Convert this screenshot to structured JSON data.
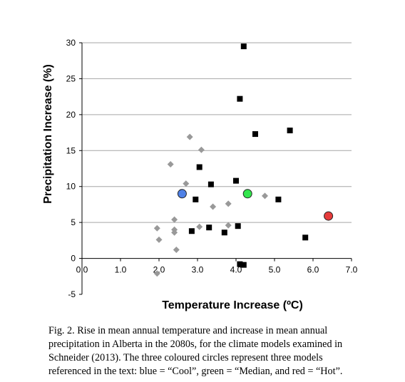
{
  "chart_data": {
    "type": "scatter",
    "xlabel": "Temperature Increase (ºC)",
    "ylabel": "Precipitation Increase (%)",
    "xlim": [
      0,
      7
    ],
    "ylim": [
      -5,
      30
    ],
    "x_ticks": [
      "0.0",
      "1.0",
      "2.0",
      "3.0",
      "4.0",
      "5.0",
      "6.0",
      "7.0"
    ],
    "y_ticks": [
      "-5",
      "0",
      "5",
      "10",
      "15",
      "20",
      "25",
      "30"
    ],
    "gridlines": "horizontal",
    "series": [
      {
        "marker": "square",
        "color": "#000000",
        "points": [
          [
            4.2,
            29.5
          ],
          [
            4.1,
            22.2
          ],
          [
            4.5,
            17.3
          ],
          [
            5.4,
            17.8
          ],
          [
            3.05,
            12.7
          ],
          [
            4.0,
            10.8
          ],
          [
            3.35,
            10.3
          ],
          [
            2.95,
            8.2
          ],
          [
            5.1,
            8.2
          ],
          [
            4.05,
            4.5
          ],
          [
            3.3,
            4.3
          ],
          [
            3.7,
            3.6
          ],
          [
            2.85,
            3.8
          ],
          [
            5.8,
            2.9
          ],
          [
            4.1,
            -0.8
          ],
          [
            4.2,
            -0.9
          ]
        ]
      },
      {
        "marker": "diamond",
        "color": "#999999",
        "points": [
          [
            2.8,
            16.9
          ],
          [
            3.1,
            15.1
          ],
          [
            2.3,
            13.1
          ],
          [
            2.7,
            10.4
          ],
          [
            4.75,
            8.7
          ],
          [
            3.8,
            7.6
          ],
          [
            3.4,
            7.2
          ],
          [
            2.4,
            5.4
          ],
          [
            3.05,
            4.4
          ],
          [
            3.8,
            4.6
          ],
          [
            1.95,
            4.2
          ],
          [
            2.4,
            4.0
          ],
          [
            2.4,
            3.6
          ],
          [
            2.0,
            2.6
          ],
          [
            2.45,
            1.2
          ],
          [
            1.95,
            -2.1
          ]
        ]
      },
      {
        "marker": "circle",
        "points": [
          {
            "x": 2.6,
            "y": 9.0,
            "color": "#4f81e6"
          },
          {
            "x": 4.3,
            "y": 9.0,
            "color": "#33e64d"
          },
          {
            "x": 6.4,
            "y": 5.9,
            "color": "#e63b3b"
          }
        ]
      }
    ]
  },
  "caption": {
    "lines": [
      "Fig. 2.  Rise in mean annual temperature and increase in mean annual",
      "precipitation in Alberta in the 2080s, for the climate models examined in",
      "Schneider (2013).  The three coloured circles represent three models",
      "referenced in the text: blue = “Cool”, green = “Median, and red = “Hot”."
    ]
  }
}
